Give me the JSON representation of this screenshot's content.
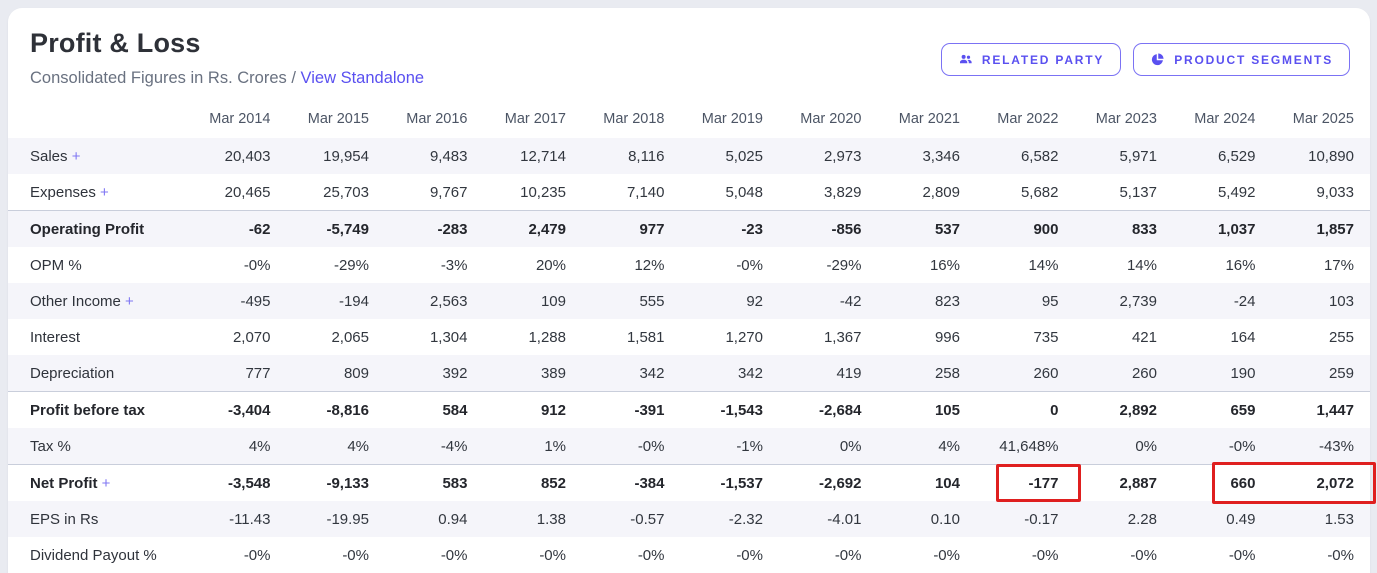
{
  "header": {
    "title": "Profit & Loss",
    "subtitle": "Consolidated Figures in Rs. Crores /",
    "link_label": "View Standalone",
    "buttons": [
      {
        "label": "RELATED PARTY",
        "icon": "users-icon"
      },
      {
        "label": "PRODUCT SEGMENTS",
        "icon": "pie-chart-icon"
      }
    ]
  },
  "colors": {
    "accent": "#5a50f0",
    "highlight_red": "#df1f1f",
    "stripe": "#f5f5fa"
  },
  "table": {
    "columns": [
      "Mar 2014",
      "Mar 2015",
      "Mar 2016",
      "Mar 2017",
      "Mar 2018",
      "Mar 2019",
      "Mar 2020",
      "Mar 2021",
      "Mar 2022",
      "Mar 2023",
      "Mar 2024",
      "Mar 2025"
    ],
    "rows": [
      {
        "label": "Sales",
        "plus": true,
        "bold": false,
        "values": [
          "20,403",
          "19,954",
          "9,483",
          "12,714",
          "8,116",
          "5,025",
          "2,973",
          "3,346",
          "6,582",
          "5,971",
          "6,529",
          "10,890"
        ]
      },
      {
        "label": "Expenses",
        "plus": true,
        "bold": false,
        "values": [
          "20,465",
          "25,703",
          "9,767",
          "10,235",
          "7,140",
          "5,048",
          "3,829",
          "2,809",
          "5,682",
          "5,137",
          "5,492",
          "9,033"
        ]
      },
      {
        "label": "Operating Profit",
        "plus": false,
        "bold": true,
        "values": [
          "-62",
          "-5,749",
          "-283",
          "2,479",
          "977",
          "-23",
          "-856",
          "537",
          "900",
          "833",
          "1,037",
          "1,857"
        ]
      },
      {
        "label": "OPM %",
        "plus": false,
        "bold": false,
        "values": [
          "-0%",
          "-29%",
          "-3%",
          "20%",
          "12%",
          "-0%",
          "-29%",
          "16%",
          "14%",
          "14%",
          "16%",
          "17%"
        ]
      },
      {
        "label": "Other Income",
        "plus": true,
        "bold": false,
        "values": [
          "-495",
          "-194",
          "2,563",
          "109",
          "555",
          "92",
          "-42",
          "823",
          "95",
          "2,739",
          "-24",
          "103"
        ]
      },
      {
        "label": "Interest",
        "plus": false,
        "bold": false,
        "values": [
          "2,070",
          "2,065",
          "1,304",
          "1,288",
          "1,581",
          "1,270",
          "1,367",
          "996",
          "735",
          "421",
          "164",
          "255"
        ]
      },
      {
        "label": "Depreciation",
        "plus": false,
        "bold": false,
        "values": [
          "777",
          "809",
          "392",
          "389",
          "342",
          "342",
          "419",
          "258",
          "260",
          "260",
          "190",
          "259"
        ]
      },
      {
        "label": "Profit before tax",
        "plus": false,
        "bold": true,
        "values": [
          "-3,404",
          "-8,816",
          "584",
          "912",
          "-391",
          "-1,543",
          "-2,684",
          "105",
          "0",
          "2,892",
          "659",
          "1,447"
        ]
      },
      {
        "label": "Tax %",
        "plus": false,
        "bold": false,
        "values": [
          "4%",
          "4%",
          "-4%",
          "1%",
          "-0%",
          "-1%",
          "0%",
          "4%",
          "41,648%",
          "0%",
          "-0%",
          "-43%"
        ]
      },
      {
        "label": "Net Profit",
        "plus": true,
        "bold": true,
        "values": [
          "-3,548",
          "-9,133",
          "583",
          "852",
          "-384",
          "-1,537",
          "-2,692",
          "104",
          "-177",
          "2,887",
          "660",
          "2,072"
        ]
      },
      {
        "label": "EPS in Rs",
        "plus": false,
        "bold": false,
        "values": [
          "-11.43",
          "-19.95",
          "0.94",
          "1.38",
          "-0.57",
          "-2.32",
          "-4.01",
          "0.10",
          "-0.17",
          "2.28",
          "0.49",
          "1.53"
        ]
      },
      {
        "label": "Dividend Payout %",
        "plus": false,
        "bold": false,
        "values": [
          "-0%",
          "-0%",
          "-0%",
          "-0%",
          "-0%",
          "-0%",
          "-0%",
          "-0%",
          "-0%",
          "-0%",
          "-0%",
          "-0%"
        ]
      }
    ]
  },
  "highlights": [
    {
      "row": "Net Profit",
      "columns": [
        "Mar 2022"
      ],
      "color": "#df1f1f"
    },
    {
      "row": "Net Profit",
      "columns": [
        "Mar 2024",
        "Mar 2025"
      ],
      "color": "#df1f1f"
    }
  ]
}
